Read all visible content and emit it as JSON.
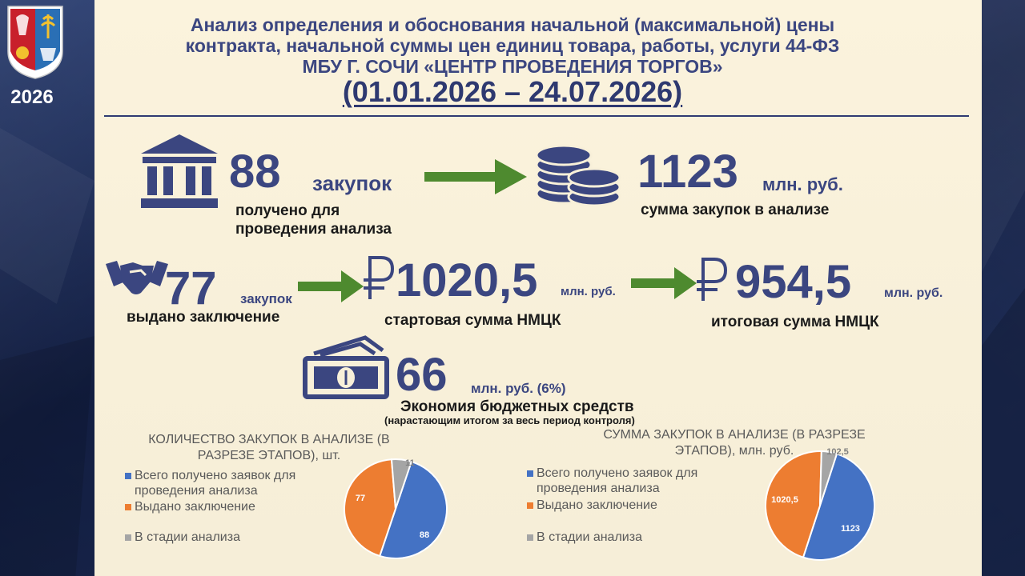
{
  "header": {
    "year": "2026",
    "title_line1": "Анализ определения и обоснования начальной (максимальной) цены",
    "title_line2": "контракта, начальной суммы цен единиц товара, работы, услуги 44-ФЗ",
    "title_line3": "МБУ Г. СОЧИ «ЦЕНТР ПРОВЕДЕНИЯ ТОРГОВ»",
    "period": "(01.01.2026 – 24.07.2026)"
  },
  "icons": {
    "emblem": "sochi-coat-of-arms-icon",
    "bank": "bank-building-icon",
    "coins": "coins-stack-icon",
    "handshake": "handshake-icon",
    "ruble": "ruble-sign-icon",
    "money": "banknotes-icon",
    "arrow": "green-arrow-icon"
  },
  "colors": {
    "accent": "#3b4680",
    "arrow": "#4e8a2f",
    "blue": "#4472c4",
    "orange": "#ed7d31",
    "gray": "#a5a5a5"
  },
  "metrics": {
    "received": {
      "value": "88",
      "unit": "закупок",
      "caption_line1": "получено для",
      "caption_line2": "проведения анализа"
    },
    "sum": {
      "value": "1123",
      "unit": "млн. руб.",
      "caption": "сумма закупок в анализе"
    },
    "issued": {
      "value": "77",
      "unit": "закупок",
      "caption": "выдано заключение"
    },
    "start_nmck": {
      "value": "1020,5",
      "unit": "млн. руб.",
      "caption": "стартовая сумма НМЦК"
    },
    "final_nmck": {
      "value": "954,5",
      "unit": "млн. руб.",
      "caption": "итоговая сумма НМЦК"
    },
    "savings": {
      "value": "66",
      "unit": "млн. руб. (6%)",
      "caption": "Экономия бюджетных средств",
      "note": "(нарастающим итогом за весь период контроля)"
    }
  },
  "chart_data": [
    {
      "type": "pie",
      "title_line1": "КОЛИЧЕСТВО ЗАКУПОК В АНАЛИЗЕ (В",
      "title_line2": "РАЗРЕЗЕ ЭТАПОВ), шт.",
      "legend_position": "left",
      "slices": [
        {
          "legend_line1": "Всего получено заявок для",
          "legend_line2": "проведения анализа",
          "value": 88,
          "label": "88",
          "color": "#4472c4"
        },
        {
          "legend_line1": "Выдано заключение",
          "value": 77,
          "label": "77",
          "color": "#ed7d31"
        },
        {
          "legend_line1": "В стадии анализа",
          "value": 11,
          "label": "11",
          "color": "#a5a5a5"
        }
      ]
    },
    {
      "type": "pie",
      "title_line1": "СУММА ЗАКУПОК В АНАЛИЗЕ  (В РАЗРЕЗЕ",
      "title_line2": "ЭТАПОВ), млн. руб.",
      "legend_position": "left",
      "slices": [
        {
          "legend_line1": "Всего получено заявок для",
          "legend_line2": "проведения анализа",
          "value": 1123,
          "label": "1123",
          "color": "#4472c4"
        },
        {
          "legend_line1": "Выдано заключение",
          "value": 1020.5,
          "label": "1020,5",
          "color": "#ed7d31"
        },
        {
          "legend_line1": "В стадии анализа",
          "value": 102.5,
          "label": "102,5",
          "color": "#a5a5a5"
        }
      ]
    }
  ]
}
